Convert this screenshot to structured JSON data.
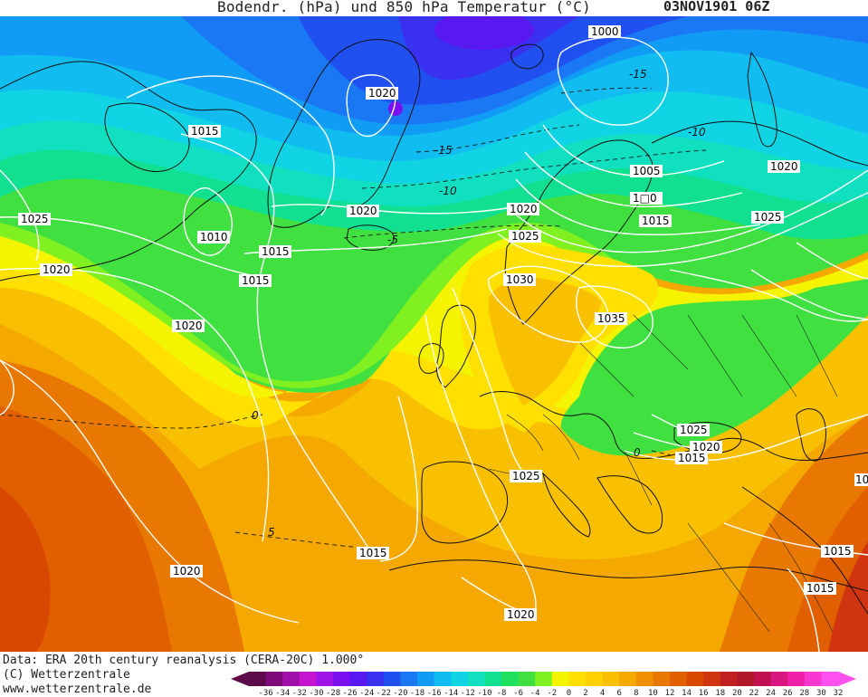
{
  "header": {
    "title": "Bodendr. (hPa) und 850 hPa Temperatur (°C)",
    "date": "03NOV1901 06Z"
  },
  "footer": {
    "data_source": "Data: ERA 20th century reanalysis (CERA-20C) 1.000°",
    "copyright": "(C) Wetterzentrale",
    "website": "www.wetterzentrale.de"
  },
  "legend": {
    "ticks": [
      "-36",
      "-34",
      "-32",
      "-30",
      "-28",
      "-26",
      "-24",
      "-22",
      "-20",
      "-18",
      "-16",
      "-14",
      "-12",
      "-10",
      "-8",
      "-6",
      "-4",
      "-2",
      "0",
      "2",
      "4",
      "6",
      "8",
      "10",
      "12",
      "14",
      "16",
      "18",
      "20",
      "22",
      "24",
      "26",
      "28",
      "30",
      "32"
    ],
    "colors": [
      "#5c0a4a",
      "#7d0c7a",
      "#a010a8",
      "#c414d0",
      "#a014e8",
      "#7a10f0",
      "#5a18f0",
      "#3a30f0",
      "#2050f0",
      "#1a78f4",
      "#109cf4",
      "#10bcf0",
      "#10d4e4",
      "#10e0c0",
      "#10e090",
      "#20e060",
      "#40e040",
      "#80f020",
      "#f4f400",
      "#ffe000",
      "#ffd000",
      "#f8c000",
      "#f4a800",
      "#f09000",
      "#e87800",
      "#e06000",
      "#d84800",
      "#d03410",
      "#c02020",
      "#b01828",
      "#c01050",
      "#d81880",
      "#f020a8",
      "#f838d0",
      "#ff50f0"
    ],
    "colors_note": ""
  },
  "pressure_labels": [
    {
      "text": "1000"
    },
    {
      "text": "1020"
    },
    {
      "text": "1015"
    },
    {
      "text": "1005"
    },
    {
      "text": "1020"
    },
    {
      "text": "1□0"
    },
    {
      "text": "1015"
    },
    {
      "text": "1025"
    },
    {
      "text": "1020"
    },
    {
      "text": "1020"
    },
    {
      "text": "1025"
    },
    {
      "text": "1010"
    },
    {
      "text": "1015"
    },
    {
      "text": "1025"
    },
    {
      "text": "1020"
    },
    {
      "text": "1015"
    },
    {
      "text": "1030"
    },
    {
      "text": "1035"
    },
    {
      "text": "1020"
    },
    {
      "text": "1025"
    },
    {
      "text": "1020"
    },
    {
      "text": "1015"
    },
    {
      "text": "1025"
    },
    {
      "text": "1015"
    },
    {
      "text": "1020"
    },
    {
      "text": "1020"
    },
    {
      "text": "1015"
    },
    {
      "text": "1015"
    },
    {
      "text": "10"
    }
  ],
  "temp_labels": [
    {
      "text": "-15"
    },
    {
      "text": "-15"
    },
    {
      "text": "-10"
    },
    {
      "text": "-10"
    },
    {
      "text": "-5"
    },
    {
      "text": "0"
    },
    {
      "text": "0"
    },
    {
      "text": "5"
    }
  ]
}
